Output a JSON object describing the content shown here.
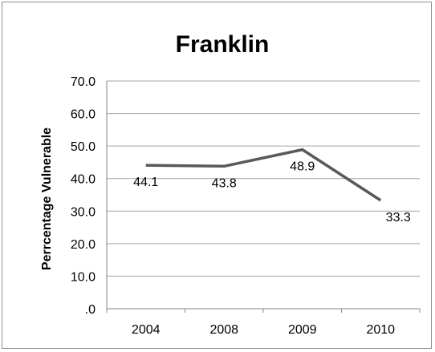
{
  "chart_data": {
    "type": "line",
    "title": "Franklin",
    "xlabel": "",
    "ylabel": "Perrcentage Vulnerable",
    "categories": [
      "2004",
      "2008",
      "2009",
      "2010"
    ],
    "series": [
      {
        "values": [
          44.1,
          43.8,
          48.9,
          33.3
        ],
        "color": "#595959"
      }
    ],
    "data_labels": [
      "44.1",
      "43.8",
      "48.9",
      "33.3"
    ],
    "ylim": [
      0,
      70
    ],
    "y_ticks": [
      ".0",
      "10.0",
      "20.0",
      "30.0",
      "40.0",
      "50.0",
      "60.0",
      "70.0"
    ],
    "y_tick_values": [
      0,
      10,
      20,
      30,
      40,
      50,
      60,
      70
    ],
    "grid": true,
    "legend": "none"
  }
}
